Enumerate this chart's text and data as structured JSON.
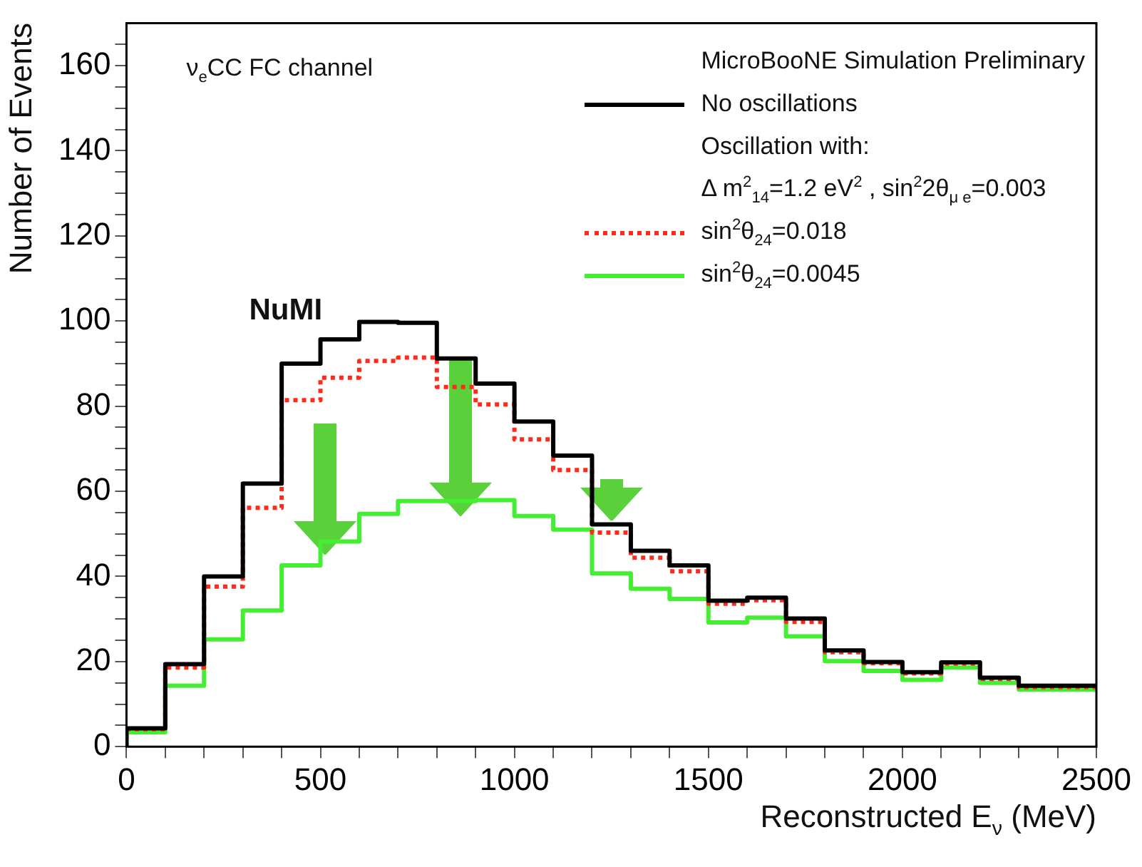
{
  "chart_data": {
    "type": "step",
    "ylabel": "Number of Events",
    "xlabel": "Reconstructed E$_{ν}$ (MeV)",
    "legend_title": "MicroBooNE Simulation Preliminary",
    "legend": "top right",
    "annotations": [
      "ν$_{e}$CC FC channel",
      "NuMI",
      "Oscillation with:",
      "Δ m$^{2}$$_{14}$=1.2 eV$^{2}$ , sin$^{2}$2θ$_{μ e}$=0.003"
    ],
    "x": [
      0,
      100,
      200,
      300,
      400,
      500,
      600,
      700,
      800,
      900,
      1000,
      1100,
      1200,
      1300,
      1400,
      1500,
      1600,
      1700,
      1800,
      1900,
      2000,
      2100,
      2200,
      2300,
      2400,
      2500
    ],
    "series": [
      {
        "name": "No oscillations",
        "color": "#000000",
        "line_style": "solid",
        "values": [
          0,
          4.3,
          19.4,
          40,
          61.8,
          90,
          95.7,
          99.8,
          99.6,
          91.2,
          85.3,
          76.4,
          68.4,
          52.2,
          46,
          42.6,
          34.3,
          35,
          30.1,
          22.6,
          19.9,
          17.5,
          19.8,
          16.2,
          14.3,
          14.3
        ]
      },
      {
        "name": "sin$^{2}$θ$_{24}$=0.018",
        "color": "#ff2a1a",
        "line_style": "dotted",
        "values": [
          0,
          4.1,
          18.6,
          37.6,
          56.1,
          81.4,
          86.7,
          90.6,
          91.4,
          84.5,
          80.4,
          72.2,
          65,
          50.3,
          44.4,
          41.2,
          33.6,
          34.4,
          29.3,
          22.2,
          19.6,
          17.2,
          19.5,
          15.9,
          14,
          14
        ]
      },
      {
        "name": "sin$^{2}$θ$_{24}$=0.0045",
        "color": "#44ee33",
        "line_style": "solid",
        "values": [
          0,
          3.4,
          14.3,
          25.2,
          32,
          42.6,
          48.2,
          54.7,
          57.7,
          57.7,
          57.9,
          54.2,
          51,
          40.7,
          37.1,
          34.7,
          29.2,
          30.3,
          25.9,
          20.1,
          17.8,
          15.7,
          18.6,
          15,
          13.4,
          13.4
        ]
      }
    ],
    "xlim": [
      0,
      2500
    ],
    "ylim": [
      0,
      170
    ],
    "xticks": [
      0,
      {
        "value": 100,
        "label": null
      },
      {
        "value": 200,
        "label": null
      },
      {
        "value": 300,
        "label": null
      },
      {
        "value": 400,
        "label": null
      },
      500,
      {
        "value": 600,
        "label": null
      },
      {
        "value": 700,
        "label": null
      },
      {
        "value": 800,
        "label": null
      },
      {
        "value": 900,
        "label": null
      },
      1000,
      {
        "value": 1100,
        "label": null
      },
      {
        "value": 1200,
        "label": null
      },
      {
        "value": 1300,
        "label": null
      },
      {
        "value": 1400,
        "label": null
      },
      1500,
      {
        "value": 1600,
        "label": null
      },
      {
        "value": 1700,
        "label": null
      },
      {
        "value": 1800,
        "label": null
      },
      {
        "value": 1900,
        "label": null
      },
      2000,
      {
        "value": 2100,
        "label": null
      },
      {
        "value": 2200,
        "label": null
      },
      {
        "value": 2300,
        "label": null
      },
      {
        "value": 2400,
        "label": null
      },
      2500
    ],
    "yticks": [
      0,
      {
        "value": 5,
        "label": null
      },
      {
        "value": 10,
        "label": null
      },
      {
        "value": 15,
        "label": null
      },
      20,
      {
        "value": 25,
        "label": null
      },
      {
        "value": 30,
        "label": null
      },
      {
        "value": 35,
        "label": null
      },
      40,
      {
        "value": 45,
        "label": null
      },
      {
        "value": 50,
        "label": null
      },
      {
        "value": 55,
        "label": null
      },
      60,
      {
        "value": 65,
        "label": null
      },
      {
        "value": 70,
        "label": null
      },
      {
        "value": 75,
        "label": null
      },
      80,
      {
        "value": 85,
        "label": null
      },
      {
        "value": 90,
        "label": null
      },
      {
        "value": 95,
        "label": null
      },
      100,
      {
        "value": 105,
        "label": null
      },
      {
        "value": 110,
        "label": null
      },
      {
        "value": 115,
        "label": null
      },
      120,
      {
        "value": 125,
        "label": null
      },
      {
        "value": 130,
        "label": null
      },
      {
        "value": 135,
        "label": null
      },
      140,
      {
        "value": 145,
        "label": null
      },
      {
        "value": 150,
        "label": null
      },
      {
        "value": 155,
        "label": null
      },
      160,
      {
        "value": 165,
        "label": null
      }
    ]
  }
}
